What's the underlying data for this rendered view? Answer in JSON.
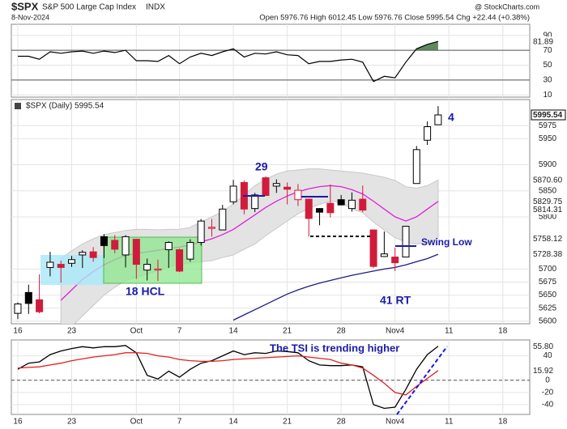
{
  "header": {
    "symbol": "$SPX",
    "name": "S&P 500 Large Cap Index",
    "exchange": "INDX",
    "date": "8-Nov-2024",
    "quote": "Open 5976.76  High 6012.45  Low 5976.76  Close 5995.54  Chg +22.44 (+0.38%)",
    "source": "@ StockCharts.com"
  },
  "annotations": [
    "29",
    "18 HCL",
    "41 RT",
    "4",
    "Swing Low",
    "The TSI is trending higher"
  ],
  "chart_data": [
    {
      "type": "oscillator",
      "panel": "top",
      "color": "#000000",
      "fill_above": "#5d8a5d",
      "fill_below": "#b04a5a",
      "values": [
        62,
        62,
        58,
        68,
        66,
        68,
        69,
        66,
        69,
        67,
        70,
        56,
        56,
        55,
        63,
        52,
        61,
        66,
        63,
        68,
        72,
        61,
        66,
        65,
        68,
        64,
        63,
        52,
        55,
        55,
        57,
        58,
        54,
        28,
        35,
        33,
        54,
        72,
        78,
        81.89
      ],
      "ylim": [
        7,
        105
      ],
      "yticks": [
        10,
        30,
        50,
        70,
        90
      ],
      "levels": [
        70,
        30
      ],
      "end_labels": [
        {
          "value": 81.89,
          "label": "81.89",
          "color": "#000000"
        }
      ]
    },
    {
      "type": "candlestick",
      "panel": "main",
      "title": "$SPX (Daily) 5995.54",
      "categories": [
        "2024-09-16",
        "2024-09-17",
        "2024-09-18",
        "2024-09-19",
        "2024-09-20",
        "2024-09-23",
        "2024-09-24",
        "2024-09-25",
        "2024-09-26",
        "2024-09-27",
        "2024-09-30",
        "2024-10-01",
        "2024-10-02",
        "2024-10-03",
        "2024-10-04",
        "2024-10-07",
        "2024-10-08",
        "2024-10-09",
        "2024-10-10",
        "2024-10-11",
        "2024-10-14",
        "2024-10-15",
        "2024-10-16",
        "2024-10-17",
        "2024-10-18",
        "2024-10-21",
        "2024-10-22",
        "2024-10-23",
        "2024-10-24",
        "2024-10-25",
        "2024-10-28",
        "2024-10-29",
        "2024-10-30",
        "2024-10-31",
        "2024-11-01",
        "2024-11-04",
        "2024-11-05",
        "2024-11-06",
        "2024-11-07",
        "2024-11-08"
      ],
      "open": [
        5615,
        5655,
        5641,
        5703,
        5709,
        5711,
        5727,
        5733,
        5762,
        5755,
        5727,
        5757,
        5698,
        5698,
        5737,
        5737,
        5719,
        5751,
        5778,
        5775,
        5829,
        5866,
        5816,
        5875,
        5859,
        5857,
        5833,
        5834,
        5816,
        5826,
        5833,
        5816,
        5834,
        5775,
        5724,
        5723,
        5723,
        5864,
        5947,
        5976.76
      ],
      "high": [
        5636,
        5670,
        5690,
        5733,
        5716,
        5725,
        5736,
        5742,
        5767,
        5765,
        5765,
        5758,
        5720,
        5718,
        5753,
        5739,
        5757,
        5796,
        5796,
        5823,
        5871,
        5870,
        5846,
        5878,
        5872,
        5866,
        5863,
        5834,
        5817,
        5862,
        5842,
        5847,
        5860,
        5775,
        5772,
        5741,
        5783,
        5936,
        5983,
        6012.45
      ],
      "low": [
        5604,
        5614,
        5615,
        5686,
        5674,
        5704,
        5702,
        5714,
        5721,
        5730,
        5703,
        5681,
        5678,
        5677,
        5702,
        5694,
        5714,
        5745,
        5762,
        5775,
        5824,
        5805,
        5809,
        5840,
        5846,
        5824,
        5821,
        5762,
        5784,
        5799,
        5822,
        5810,
        5809,
        5702,
        5723,
        5696,
        5723,
        5864,
        5938,
        5976.76
      ],
      "close": [
        5633,
        5634,
        5618,
        5713,
        5703,
        5718,
        5732,
        5722,
        5745,
        5738,
        5762,
        5709,
        5709,
        5700,
        5751,
        5696,
        5751,
        5792,
        5780,
        5815,
        5859,
        5815,
        5842,
        5841,
        5864,
        5853,
        5851,
        5797,
        5809,
        5808,
        5823,
        5832,
        5813,
        5705,
        5729,
        5712,
        5782,
        5929,
        5973,
        5995.54
      ],
      "up_color": "#000000",
      "down_color": "#d01c3c",
      "overlays": [
        {
          "kind": "band",
          "color": "#e3e3e3",
          "upper": [
            null,
            null,
            null,
            null,
            5720,
            5735,
            5748,
            5758,
            5766,
            5770,
            5774,
            5776,
            5776,
            5775,
            5776,
            5776,
            5780,
            5790,
            5800,
            5810,
            5825,
            5842,
            5860,
            5872,
            5882,
            5888,
            5890,
            5892,
            5892,
            5890,
            5888,
            5886,
            5884,
            5880,
            5876,
            5870,
            5858,
            5855,
            5860,
            5870.6
          ],
          "lower": [
            null,
            null,
            null,
            null,
            5570,
            5590,
            5610,
            5630,
            5650,
            5665,
            5678,
            5684,
            5690,
            5697,
            5704,
            5708,
            5712,
            5714,
            5716,
            5722,
            5727,
            5738,
            5748,
            5764,
            5778,
            5792,
            5806,
            5816,
            5824,
            5830,
            5828,
            5815,
            5808,
            5790,
            5775,
            5760,
            5752,
            5748,
            5750,
            5758.12
          ]
        },
        {
          "kind": "line",
          "color": "#e020d8",
          "values": [
            null,
            null,
            null,
            null,
            5640,
            5660,
            5680,
            5695,
            5708,
            5718,
            5726,
            5730,
            5733,
            5736,
            5740,
            5742,
            5746,
            5752,
            5758,
            5766,
            5776,
            5790,
            5804,
            5818,
            5830,
            5840,
            5848,
            5854,
            5858,
            5860,
            5858,
            5852,
            5844,
            5830,
            5815,
            5800,
            5792,
            5800,
            5815,
            5829.75
          ]
        },
        {
          "kind": "line",
          "color": "#1c1c80",
          "values": [
            null,
            null,
            null,
            null,
            null,
            null,
            null,
            null,
            null,
            null,
            null,
            null,
            null,
            null,
            null,
            null,
            null,
            null,
            null,
            null,
            5602,
            5612,
            5622,
            5632,
            5642,
            5652,
            5660,
            5667,
            5673,
            5678,
            5683,
            5688,
            5692,
            5696,
            5700,
            5703,
            5708,
            5714,
            5720,
            5728.38
          ]
        }
      ],
      "xlim": [
        -0.6,
        47.5
      ],
      "xticks": [
        {
          "value": 0,
          "label": "16"
        },
        {
          "value": 5,
          "label": "23"
        },
        {
          "value": 11,
          "label": "Oct"
        },
        {
          "value": 15,
          "label": "7"
        },
        {
          "value": 20,
          "label": "14"
        },
        {
          "value": 25,
          "label": "21"
        },
        {
          "value": 30,
          "label": "28"
        },
        {
          "value": 35,
          "label": "Nov4"
        },
        {
          "value": 40,
          "label": "11"
        },
        {
          "value": 45,
          "label": "18"
        }
      ],
      "ylim": [
        5595,
        6025
      ],
      "yticks": [
        5600,
        5625,
        5650,
        5675,
        5700,
        5800,
        5850,
        5900,
        5950,
        5975
      ],
      "end_labels": [
        {
          "value": 5995.54,
          "label": "5995.54",
          "color": "#000000",
          "boxed": true
        },
        {
          "value": 5870.6,
          "label": "5870.60",
          "color": "#444444"
        },
        {
          "value": 5829.75,
          "label": "5829.75",
          "color": "#c010b8"
        },
        {
          "value": 5814.31,
          "label": "5814.31",
          "color": "#444444"
        },
        {
          "value": 5758.12,
          "label": "5758.12",
          "color": "#444444"
        },
        {
          "value": 5728.38,
          "label": "5728.38",
          "color": "#1c1c80"
        }
      ]
    },
    {
      "type": "tsi",
      "panel": "bottom",
      "series": [
        {
          "color": "#000000",
          "values": [
            18,
            28,
            30,
            42,
            48,
            52,
            55,
            53,
            55,
            55,
            57,
            45,
            8,
            2,
            15,
            5,
            18,
            28,
            32,
            40,
            48,
            42,
            45,
            44,
            48,
            47,
            45,
            32,
            25,
            24,
            24,
            25,
            22,
            -40,
            -46,
            -44,
            -15,
            18,
            42,
            55.8
          ]
        },
        {
          "color": "#e02020",
          "values": [
            20,
            21,
            22,
            25,
            28,
            32,
            35,
            38,
            40,
            42,
            45,
            45,
            44,
            40,
            38,
            34,
            32,
            31,
            31,
            32,
            34,
            35,
            36,
            37,
            38,
            39,
            40,
            38,
            36,
            34,
            28,
            25,
            20,
            8,
            -5,
            -20,
            -24,
            -10,
            3,
            15.92
          ]
        }
      ],
      "ylim": [
        -56,
        66
      ],
      "yticks": [
        40,
        0,
        -20,
        -40
      ],
      "zero_line": true,
      "end_labels": [
        {
          "value": 55.8,
          "label": "55.80",
          "color": "#000000"
        },
        {
          "value": 15.92,
          "label": "15.92",
          "color": "#e02020"
        }
      ]
    }
  ]
}
